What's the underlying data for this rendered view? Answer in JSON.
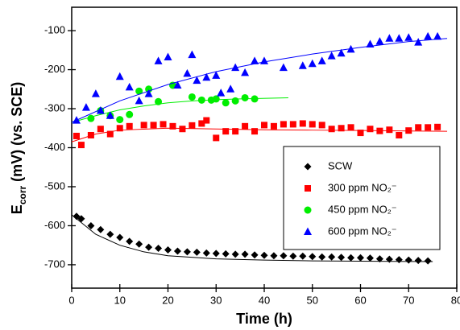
{
  "chart_data": {
    "type": "scatter",
    "x_label": "Time (h)",
    "y_label": [
      {
        "text": "E"
      },
      {
        "text": "corr",
        "sub": true
      },
      {
        "text": " (mV) (vs. SCE)"
      }
    ],
    "xlim": [
      0,
      80
    ],
    "xticks": [
      0,
      10,
      20,
      30,
      40,
      50,
      60,
      70,
      80
    ],
    "ylim": [
      -760,
      -40
    ],
    "yticks": [
      -700,
      -600,
      -500,
      -400,
      -300,
      -200,
      -100
    ],
    "legend": "lower-right",
    "series": [
      {
        "name": "SCW",
        "color": "#000000",
        "marker": "diamond",
        "x": [
          1,
          2,
          4,
          6,
          8,
          10,
          12,
          14,
          16,
          18,
          20,
          22,
          24,
          26,
          28,
          30,
          32,
          34,
          36,
          38,
          40,
          42,
          44,
          46,
          48,
          50,
          52,
          54,
          56,
          58,
          60,
          62,
          64,
          66,
          68,
          70,
          72,
          74
        ],
        "values": [
          -576,
          -582,
          -600,
          -610,
          -622,
          -630,
          -640,
          -647,
          -655,
          -658,
          -662,
          -665,
          -667,
          -668,
          -670,
          -671,
          -672,
          -673,
          -673,
          -675,
          -676,
          -677,
          -677,
          -678,
          -678,
          -679,
          -680,
          -680,
          -681,
          -682,
          -682,
          -683,
          -685,
          -686,
          -687,
          -688,
          -689,
          -690
        ],
        "fit": {
          "x": [
            0,
            5,
            10,
            15,
            20,
            30,
            40,
            50,
            60,
            75
          ],
          "values": [
            -572,
            -622,
            -650,
            -667,
            -677,
            -685,
            -688,
            -690,
            -691,
            -692
          ]
        }
      },
      {
        "name": "300 ppm NO₂⁻",
        "color": "#ff0000",
        "marker": "square",
        "x": [
          1,
          2,
          4,
          6,
          8,
          10,
          12,
          15,
          17,
          19,
          21,
          23,
          25,
          27,
          28,
          30,
          32,
          34,
          36,
          38,
          40,
          42,
          44,
          46,
          48,
          50,
          52,
          54,
          56,
          58,
          60,
          62,
          64,
          66,
          68,
          70,
          72,
          74,
          76
        ],
        "values": [
          -370,
          -393,
          -368,
          -352,
          -365,
          -350,
          -345,
          -342,
          -342,
          -340,
          -345,
          -352,
          -343,
          -338,
          -330,
          -375,
          -358,
          -358,
          -345,
          -358,
          -342,
          -345,
          -340,
          -340,
          -338,
          -340,
          -342,
          -352,
          -350,
          -348,
          -362,
          -352,
          -357,
          -354,
          -368,
          -356,
          -348,
          -348,
          -347
        ],
        "fit": {
          "x": [
            0,
            5,
            10,
            20,
            30,
            40,
            50,
            60,
            78
          ],
          "values": [
            -385,
            -365,
            -355,
            -350,
            -352,
            -354,
            -355,
            -356,
            -358
          ]
        }
      },
      {
        "name": "450 ppm NO₂⁻",
        "color": "#00ee00",
        "marker": "circle",
        "x": [
          4,
          6,
          8,
          10,
          12,
          14,
          16,
          18,
          21,
          25,
          27,
          29,
          30,
          32,
          34,
          36,
          38
        ],
        "values": [
          -325,
          -305,
          -318,
          -328,
          -315,
          -255,
          -250,
          -282,
          -240,
          -270,
          -278,
          -278,
          -275,
          -285,
          -280,
          -272,
          -275
        ],
        "fit": {
          "x": [
            0,
            5,
            10,
            15,
            20,
            25,
            30,
            35,
            45
          ],
          "values": [
            -335,
            -318,
            -303,
            -293,
            -285,
            -280,
            -277,
            -275,
            -272
          ]
        }
      },
      {
        "name": "600 ppm NO₂⁻",
        "color": "#0000ff",
        "marker": "triangle",
        "x": [
          1,
          3,
          5,
          6,
          8,
          10,
          12,
          14,
          16,
          18,
          20,
          22,
          24,
          25,
          26,
          28,
          30,
          31,
          33,
          34,
          36,
          38,
          40,
          44,
          48,
          50,
          52,
          54,
          56,
          58,
          62,
          64,
          66,
          68,
          70,
          72,
          74,
          76
        ],
        "values": [
          -330,
          -297,
          -262,
          -305,
          -318,
          -218,
          -245,
          -280,
          -262,
          -178,
          -168,
          -240,
          -210,
          -162,
          -228,
          -220,
          -215,
          -260,
          -250,
          -195,
          -208,
          -178,
          -178,
          -195,
          -190,
          -185,
          -178,
          -165,
          -158,
          -148,
          -135,
          -128,
          -120,
          -120,
          -118,
          -130,
          -115,
          -115
        ],
        "fit": {
          "x": [
            0,
            10,
            20,
            30,
            40,
            50,
            60,
            70,
            78
          ],
          "values": [
            -335,
            -280,
            -238,
            -205,
            -180,
            -160,
            -143,
            -128,
            -120
          ]
        }
      }
    ]
  }
}
